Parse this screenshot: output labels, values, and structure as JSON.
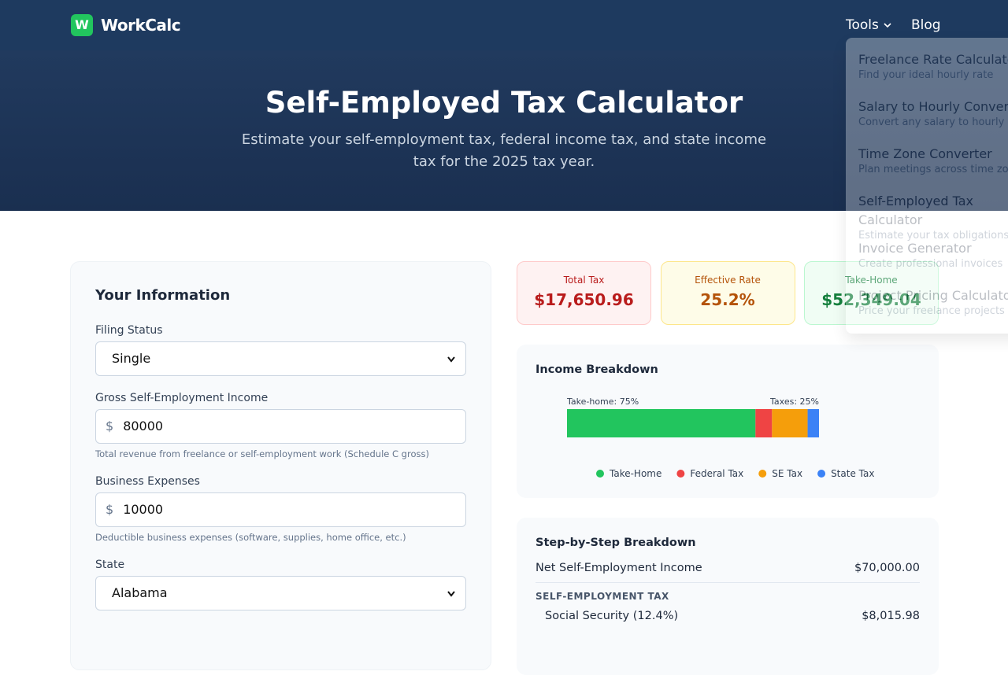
{
  "header": {
    "logo": "W",
    "brand": "WorkCalc",
    "nav": [
      "Tools",
      "Blog"
    ]
  },
  "tools_menu": [
    {
      "title": "Freelance Rate Calculator",
      "desc": "Find your ideal hourly rate"
    },
    {
      "title": "Salary to Hourly Converter",
      "desc": "Convert any salary to hourly"
    },
    {
      "title": "Time Zone Converter",
      "desc": "Plan meetings across time zones"
    },
    {
      "title": "Self-Employed Tax Calculator",
      "desc": "Estimate your tax obligations"
    },
    {
      "title": "Invoice Generator",
      "desc": "Create professional invoices"
    },
    {
      "title": "Project Pricing Calculator",
      "desc": "Price your freelance projects"
    }
  ],
  "hero": {
    "title": "Self-Employed Tax Calculator",
    "subtitle": "Estimate your self-employment tax, federal income tax, and state income tax for the 2025 tax year."
  },
  "form": {
    "title": "Your Information",
    "fields": [
      {
        "label": "Filing Status",
        "value": "Single"
      },
      {
        "label": "Gross Self-Employment Income",
        "prefix": "$",
        "value": "80000",
        "hint": "Total revenue from freelance or self-employment work (Schedule C gross)"
      },
      {
        "label": "Business Expenses",
        "prefix": "$",
        "value": "10000",
        "hint": "Deductible business expenses (software, supplies, home office, etc.)"
      },
      {
        "label": "State",
        "value": "Alabama"
      }
    ]
  },
  "summary": [
    {
      "label": "Total Tax",
      "value": "$17,650.96"
    },
    {
      "label": "Effective Rate",
      "value": "25.2%"
    },
    {
      "label": "Take-Home",
      "value": "$52,349.04"
    }
  ],
  "income_breakdown": {
    "title": "Income Breakdown",
    "left_label": "Take-home: 75%",
    "right_label": "Taxes: 25%",
    "segments": [
      {
        "name": "Take-Home",
        "color": "#22c55e",
        "value": 52349.04
      },
      {
        "name": "Federal Tax",
        "color": "#ef4444",
        "value": 4600
      },
      {
        "name": "SE Tax",
        "color": "#f59e0b",
        "value": 9890.69
      },
      {
        "name": "State Tax",
        "color": "#3b82f6",
        "value": 3160.27
      }
    ]
  },
  "steps": {
    "title": "Step-by-Step Breakdown",
    "rows": [
      {
        "label": "Net Self-Employment Income",
        "value": "$70,000.00"
      }
    ],
    "section": "SELF-EMPLOYMENT TAX",
    "sub_rows": [
      {
        "label": "Social Security (12.4%)",
        "value": "$8,015.98"
      }
    ]
  }
}
